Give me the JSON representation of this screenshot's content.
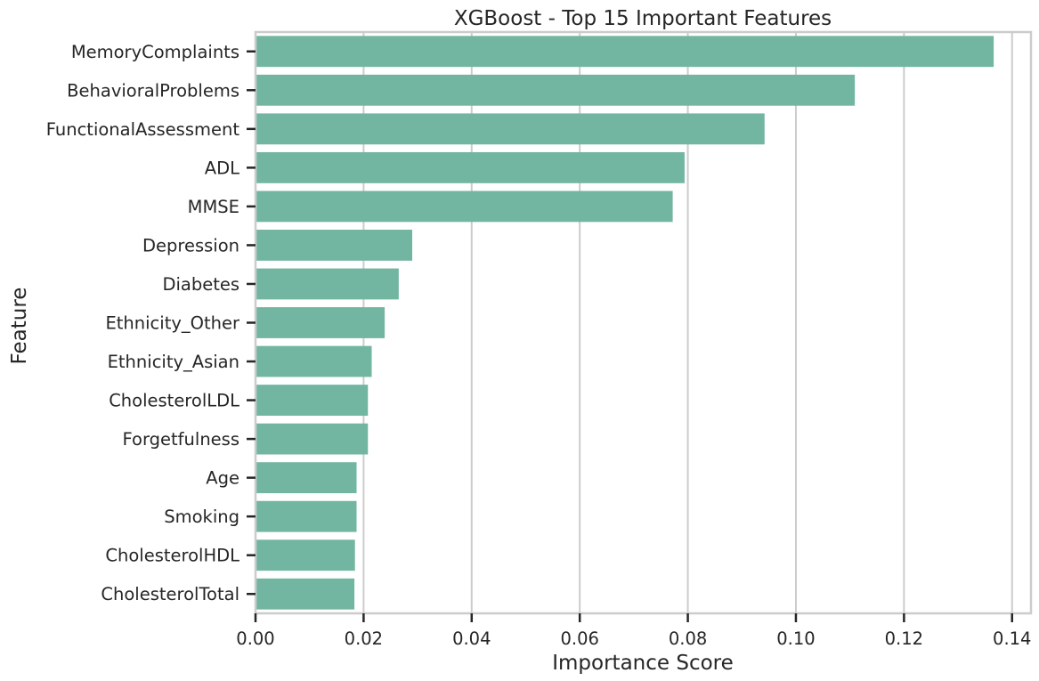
{
  "chart_data": {
    "type": "bar",
    "orientation": "horizontal",
    "title": "XGBoost - Top 15 Important Features",
    "xlabel": "Importance Score",
    "ylabel": "Feature",
    "categories": [
      "MemoryComplaints",
      "BehavioralProblems",
      "FunctionalAssessment",
      "ADL",
      "MMSE",
      "Depression",
      "Diabetes",
      "Ethnicity_Other",
      "Ethnicity_Asian",
      "CholesterolLDL",
      "Forgetfulness",
      "Age",
      "Smoking",
      "CholesterolHDL",
      "CholesterolTotal"
    ],
    "values": [
      0.1366,
      0.1109,
      0.0942,
      0.0794,
      0.0772,
      0.029,
      0.0265,
      0.0239,
      0.0215,
      0.0208,
      0.0208,
      0.0187,
      0.0187,
      0.0184,
      0.0183
    ],
    "xlim": [
      0,
      0.1435
    ],
    "xticks": [
      "0.00",
      "0.02",
      "0.04",
      "0.06",
      "0.08",
      "0.10",
      "0.12",
      "0.14"
    ],
    "xtick_values": [
      0,
      0.02,
      0.04,
      0.06,
      0.08,
      0.1,
      0.12,
      0.14
    ],
    "grid": "vertical",
    "bar_color": "#72b6a1",
    "grid_color": "#cccccc",
    "spine_color": "#cccccc",
    "text_color": "#262626"
  }
}
